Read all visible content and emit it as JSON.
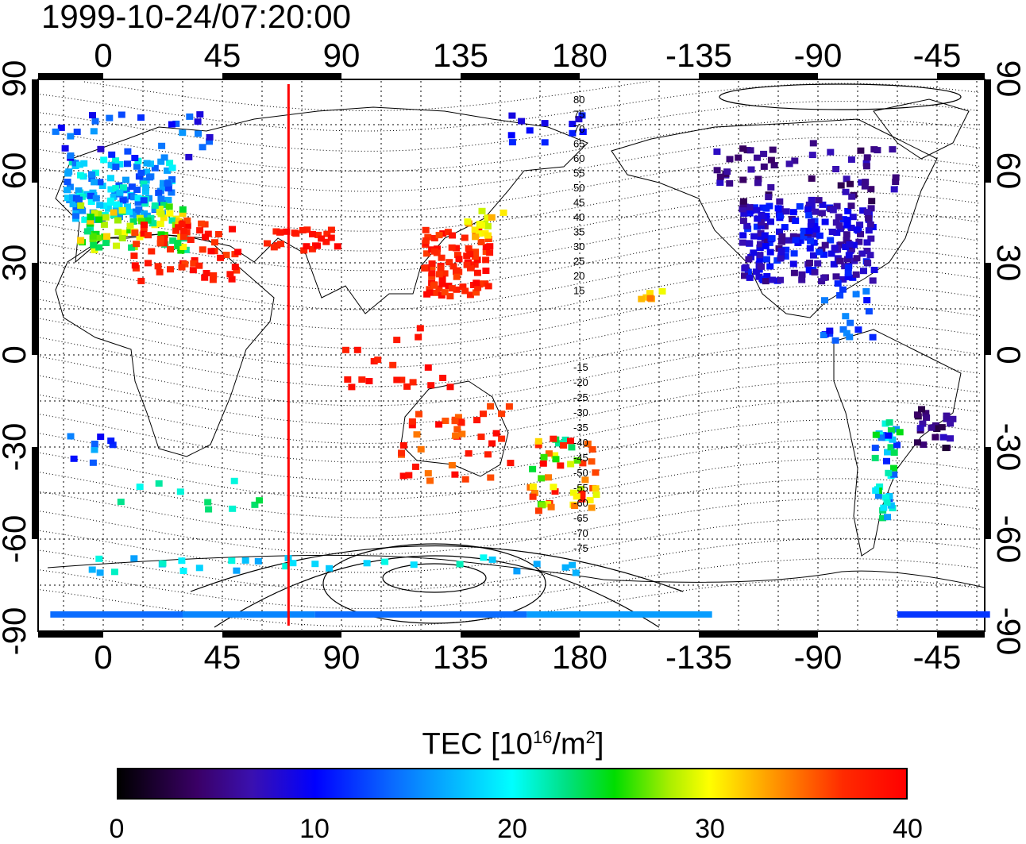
{
  "title": "1999-10-24/07:20:00",
  "map": {
    "x_ticks": [
      "0",
      "45",
      "90",
      "135",
      "180",
      "-135",
      "-90",
      "-45"
    ],
    "y_ticks": [
      "90",
      "60",
      "30",
      "0",
      "-30",
      "-60",
      "-90"
    ],
    "contour_labels_north": [
      "80",
      "75",
      "70",
      "65",
      "60",
      "55",
      "50",
      "45",
      "40",
      "35",
      "30",
      "25",
      "20",
      "15"
    ],
    "contour_labels_south": [
      "-15",
      "-20",
      "-25",
      "-30",
      "-35",
      "-40",
      "-45",
      "-50",
      "-55",
      "-60",
      "-65",
      "-70",
      "-75"
    ],
    "marker_longitude": 70,
    "marker_color": "#ff0000"
  },
  "colorbar": {
    "title_prefix": "TEC  [10",
    "title_exp1": "16",
    "title_mid": "/m",
    "title_exp2": "2",
    "title_suffix": "]",
    "ticks": [
      "0",
      "10",
      "20",
      "30",
      "40"
    ],
    "range": [
      0,
      40
    ]
  }
}
